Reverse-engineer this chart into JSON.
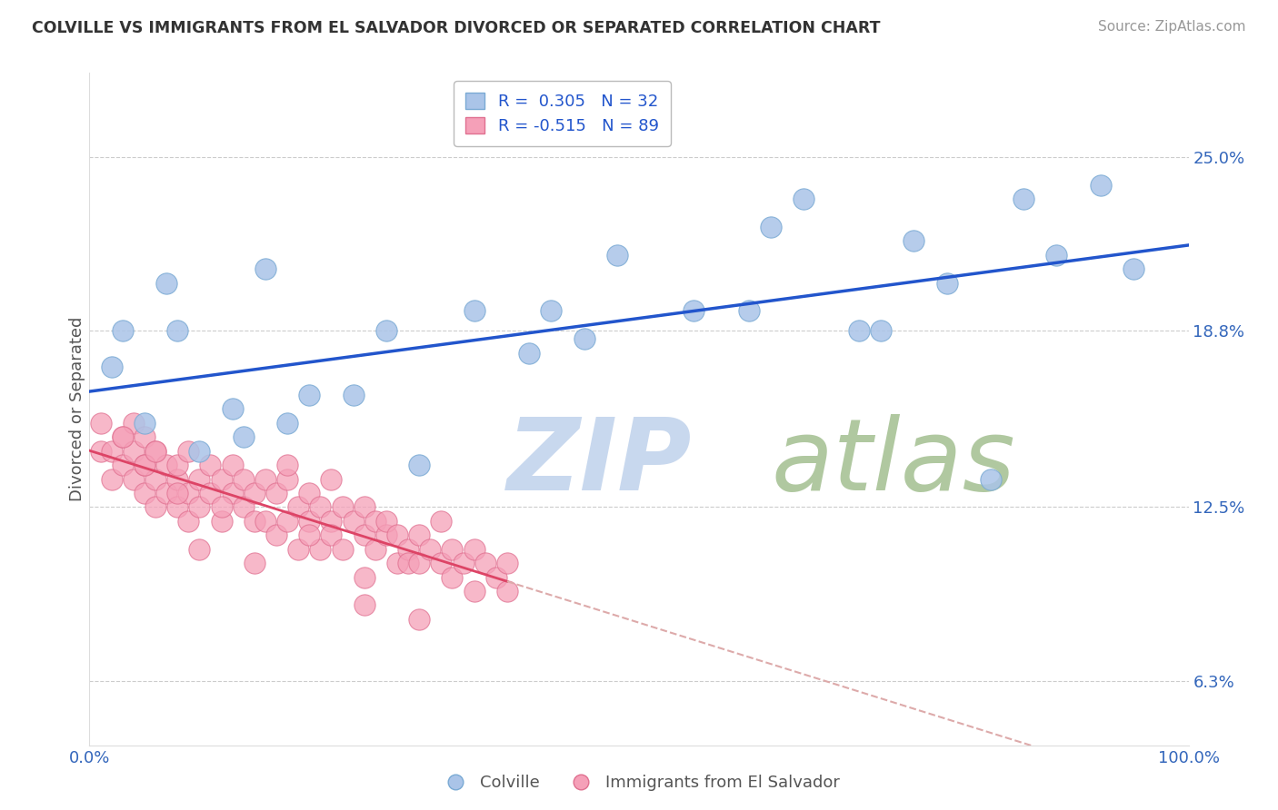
{
  "title": "COLVILLE VS IMMIGRANTS FROM EL SALVADOR DIVORCED OR SEPARATED CORRELATION CHART",
  "source": "Source: ZipAtlas.com",
  "ylabel": "Divorced or Separated",
  "xlim": [
    0.0,
    100.0
  ],
  "ylim": [
    4.0,
    28.0
  ],
  "yticks": [
    6.3,
    12.5,
    18.8,
    25.0
  ],
  "xticks": [
    0.0,
    100.0
  ],
  "grid_color": "#cccccc",
  "watermark_zip": "ZIP",
  "watermark_atlas": "atlas",
  "watermark_color_zip": "#c8d8ee",
  "watermark_color_atlas": "#b0c8a0",
  "blue_color": "#aac4e8",
  "blue_edge": "#7aaad4",
  "pink_color": "#f5a0b8",
  "pink_edge": "#e07090",
  "blue_line_color": "#2255cc",
  "pink_line_color": "#dd4466",
  "dashed_line_color": "#ddaaaa",
  "legend_label_blue": "R =  0.305   N = 32",
  "legend_label_pink": "R = -0.515   N = 89",
  "blue_x": [
    2.0,
    5.0,
    7.0,
    10.0,
    13.0,
    16.0,
    20.0,
    27.0,
    35.0,
    40.0,
    42.0,
    48.0,
    55.0,
    62.0,
    65.0,
    70.0,
    75.0,
    78.0,
    82.0,
    85.0,
    88.0,
    92.0,
    3.0,
    8.0,
    14.0,
    18.0,
    24.0,
    30.0,
    45.0,
    60.0,
    72.0,
    95.0
  ],
  "blue_y": [
    17.5,
    15.5,
    20.5,
    14.5,
    16.0,
    21.0,
    16.5,
    18.8,
    19.5,
    18.0,
    19.5,
    21.5,
    19.5,
    22.5,
    23.5,
    18.8,
    22.0,
    20.5,
    13.5,
    23.5,
    21.5,
    24.0,
    18.8,
    18.8,
    15.0,
    15.5,
    16.5,
    14.0,
    18.5,
    19.5,
    18.8,
    21.0
  ],
  "pink_x": [
    1,
    1,
    2,
    2,
    3,
    3,
    4,
    4,
    4,
    5,
    5,
    5,
    6,
    6,
    6,
    7,
    7,
    8,
    8,
    8,
    9,
    9,
    9,
    10,
    10,
    11,
    11,
    12,
    12,
    13,
    13,
    14,
    14,
    15,
    15,
    16,
    16,
    17,
    17,
    18,
    18,
    19,
    19,
    20,
    20,
    21,
    21,
    22,
    22,
    23,
    23,
    24,
    25,
    25,
    26,
    26,
    27,
    27,
    28,
    28,
    29,
    29,
    30,
    30,
    31,
    32,
    32,
    33,
    33,
    34,
    35,
    35,
    36,
    37,
    38,
    38,
    10,
    15,
    20,
    25,
    5,
    8,
    12,
    18,
    22,
    3,
    6,
    25,
    30
  ],
  "pink_y": [
    14.5,
    15.5,
    13.5,
    14.5,
    15.0,
    14.0,
    15.5,
    14.5,
    13.5,
    15.0,
    14.0,
    13.0,
    14.5,
    13.5,
    12.5,
    14.0,
    13.0,
    13.5,
    12.5,
    14.0,
    14.5,
    13.0,
    12.0,
    13.5,
    12.5,
    14.0,
    13.0,
    13.5,
    12.0,
    14.0,
    13.0,
    13.5,
    12.5,
    13.0,
    12.0,
    13.5,
    12.0,
    13.0,
    11.5,
    13.5,
    12.0,
    12.5,
    11.0,
    13.0,
    12.0,
    12.5,
    11.0,
    12.0,
    11.5,
    12.5,
    11.0,
    12.0,
    12.5,
    11.5,
    12.0,
    11.0,
    11.5,
    12.0,
    10.5,
    11.5,
    11.0,
    10.5,
    11.5,
    10.5,
    11.0,
    12.0,
    10.5,
    11.0,
    10.0,
    10.5,
    11.0,
    9.5,
    10.5,
    10.0,
    10.5,
    9.5,
    11.0,
    10.5,
    11.5,
    10.0,
    14.0,
    13.0,
    12.5,
    14.0,
    13.5,
    15.0,
    14.5,
    9.0,
    8.5
  ]
}
